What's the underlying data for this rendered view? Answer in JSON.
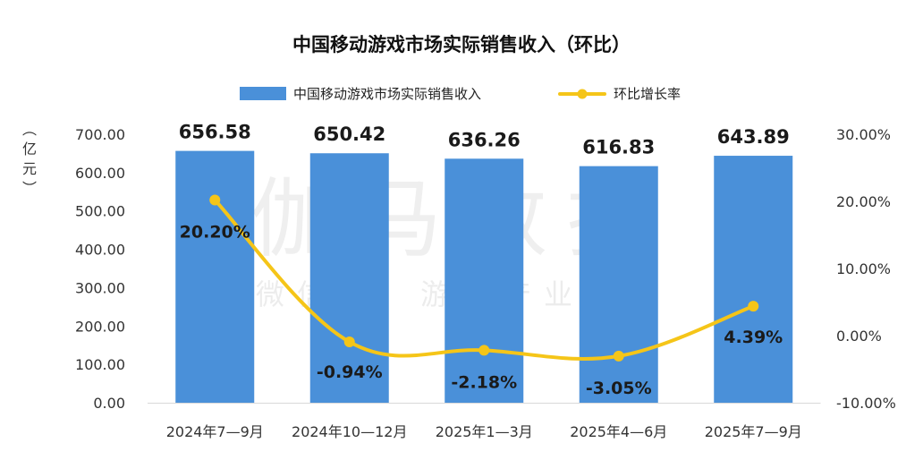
{
  "chart_data": {
    "type": "bar+line",
    "title": "中国移动游戏市场实际销售收入（环比）",
    "categories": [
      "2024年7—9月",
      "2024年10—12月",
      "2025年1—3月",
      "2025年4—6月",
      "2025年7—9月"
    ],
    "series": [
      {
        "name": "中国移动游戏市场实际销售收入",
        "type": "bar",
        "axis": "left",
        "values": [
          656.58,
          650.42,
          636.26,
          616.83,
          643.89
        ],
        "labels": [
          "656.58",
          "650.42",
          "636.26",
          "616.83",
          "643.89"
        ],
        "color": "#4a90d9"
      },
      {
        "name": "环比增长率",
        "type": "line",
        "axis": "right",
        "values": [
          20.2,
          -0.94,
          -2.18,
          -3.05,
          4.39
        ],
        "labels": [
          "20.20%",
          "-0.94%",
          "-2.18%",
          "-3.05%",
          "4.39%"
        ],
        "color": "#f5c518"
      }
    ],
    "ylabel": "亿元",
    "y_left": {
      "min": 0,
      "max": 700,
      "ticks": [
        "0.00",
        "100.00",
        "200.00",
        "300.00",
        "400.00",
        "500.00",
        "600.00",
        "700.00"
      ]
    },
    "y_right": {
      "min": -10,
      "max": 30,
      "ticks": [
        "-10.00%",
        "0.00%",
        "10.00%",
        "20.00%",
        "30.00%"
      ]
    },
    "grid": false,
    "legend": "top-center"
  },
  "watermark": {
    "main": "伽马数据",
    "sub": "微信号：游戏产业报告"
  }
}
